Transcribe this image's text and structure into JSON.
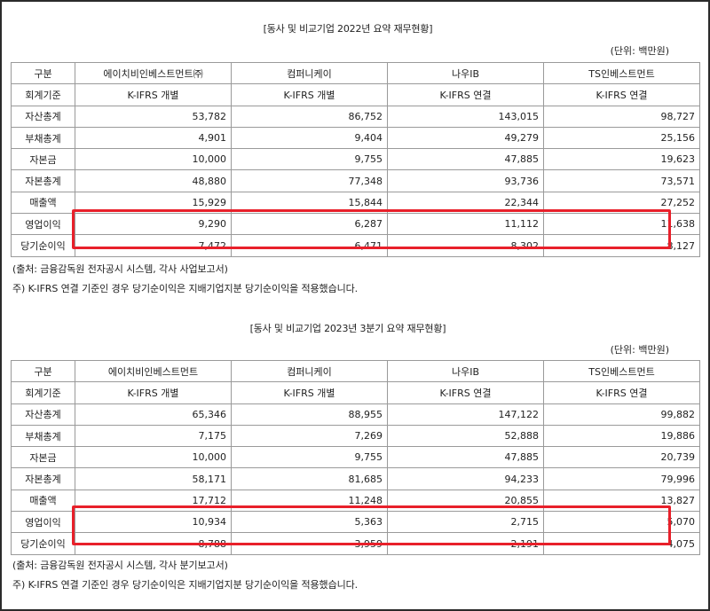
{
  "tables": [
    {
      "title": "[동사 및 비교기업 2022년 요약 재무현황]",
      "unit": "(단위: 백만원)",
      "headers": [
        "구분",
        "에이치비인베스트먼트㈜",
        "컴퍼니케이",
        "나우IB",
        "TS인베스트먼트"
      ],
      "standard": {
        "label": "회계기준",
        "values": [
          "K-IFRS 개별",
          "K-IFRS 개별",
          "K-IFRS 연결",
          "K-IFRS 연결"
        ]
      },
      "rows": [
        {
          "label": "자산총계",
          "values": [
            "53,782",
            "86,752",
            "143,015",
            "98,727"
          ]
        },
        {
          "label": "부채총계",
          "values": [
            "4,901",
            "9,404",
            "49,279",
            "25,156"
          ]
        },
        {
          "label": "자본금",
          "values": [
            "10,000",
            "9,755",
            "47,885",
            "19,623"
          ]
        },
        {
          "label": "자본총계",
          "values": [
            "48,880",
            "77,348",
            "93,736",
            "73,571"
          ]
        },
        {
          "label": "매출액",
          "values": [
            "15,929",
            "15,844",
            "22,344",
            "27,252"
          ]
        },
        {
          "label": "영업이익",
          "values": [
            "9,290",
            "6,287",
            "11,112",
            "11,638"
          ]
        },
        {
          "label": "당기순이익",
          "values": [
            "7,472",
            "6,471",
            "8,302",
            "8,127"
          ]
        }
      ],
      "source": "(출처: 금융감독원 전자공시 시스템, 각사 사업보고서)",
      "footnote": "주)  K-IFRS 연결 기준인 경우 당기순이익은 지배기업지분 당기순이익을 적용했습니다."
    },
    {
      "title": "[동사 및 비교기업 2023년 3분기 요약 재무현황]",
      "unit": "(단위: 백만원)",
      "headers": [
        "구분",
        "에이치비인베스트먼트",
        "컴퍼니케이",
        "나우IB",
        "TS인베스트먼트"
      ],
      "standard": {
        "label": "회계기준",
        "values": [
          "K-IFRS 개별",
          "K-IFRS 개별",
          "K-IFRS 연결",
          "K-IFRS 연결"
        ]
      },
      "rows": [
        {
          "label": "자산총계",
          "values": [
            "65,346",
            "88,955",
            "147,122",
            "99,882"
          ]
        },
        {
          "label": "부채총계",
          "values": [
            "7,175",
            "7,269",
            "52,888",
            "19,886"
          ]
        },
        {
          "label": "자본금",
          "values": [
            "10,000",
            "9,755",
            "47,885",
            "20,739"
          ]
        },
        {
          "label": "자본총계",
          "values": [
            "58,171",
            "81,685",
            "94,233",
            "79,996"
          ]
        },
        {
          "label": "매출액",
          "values": [
            "17,712",
            "11,248",
            "20,855",
            "13,827"
          ]
        },
        {
          "label": "영업이익",
          "values": [
            "10,934",
            "5,363",
            "2,715",
            "5,070"
          ]
        },
        {
          "label": "당기순이익",
          "values": [
            "8,788",
            "3,959",
            "2,191",
            "4,075"
          ]
        }
      ],
      "source": "(출처: 금융감독원 전자공시 시스템, 각사 분기보고서)",
      "footnote": "주)  K-IFRS 연결 기준인 경우 당기순이익은 지배기업지분 당기순이익을 적용했습니다."
    }
  ],
  "highlight_color": "#e8202a"
}
